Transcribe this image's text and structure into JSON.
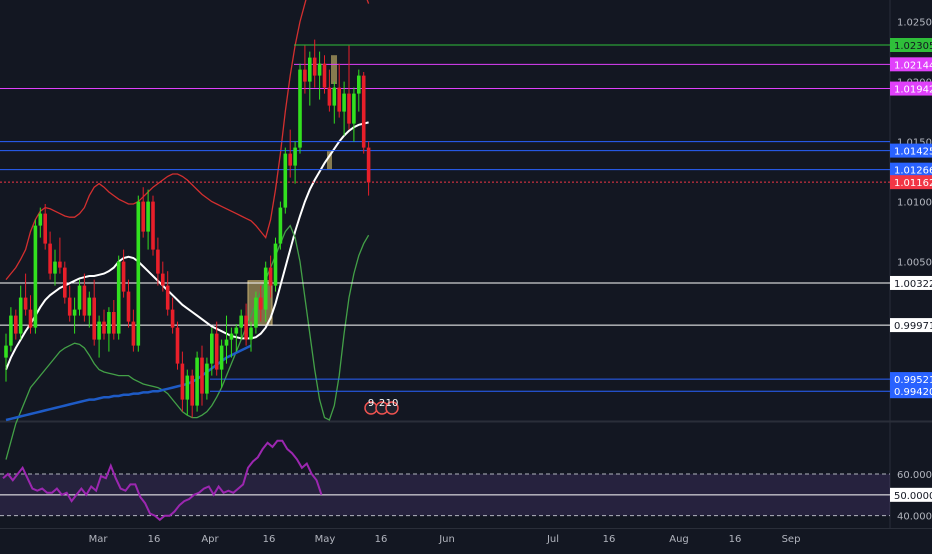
{
  "chart_data": [
    {
      "type": "candlestick",
      "title": "",
      "y_ticks": [
        "1.02500",
        "1.02000",
        "1.01500",
        "1.01000",
        "1.00500"
      ],
      "ylim": [
        0.9918,
        1.0268
      ],
      "candles": [
        [
          0.997,
          0.999,
          0.995,
          0.998
        ],
        [
          0.998,
          1.0012,
          0.9975,
          1.0005
        ],
        [
          1.0005,
          1.001,
          0.9985,
          0.999
        ],
        [
          0.999,
          1.003,
          0.9985,
          1.002
        ],
        [
          1.002,
          1.004,
          1.0005,
          1.001
        ],
        [
          1.001,
          1.0022,
          0.999,
          0.9995
        ],
        [
          0.9995,
          1.0085,
          0.999,
          1.008
        ],
        [
          1.008,
          1.0095,
          1.007,
          1.009
        ],
        [
          1.009,
          1.0098,
          1.006,
          1.0065
        ],
        [
          1.0065,
          1.0075,
          1.0035,
          1.004
        ],
        [
          1.004,
          1.006,
          1.003,
          1.005
        ],
        [
          1.005,
          1.007,
          1.004,
          1.0045
        ],
        [
          1.0045,
          1.005,
          1.0015,
          1.002
        ],
        [
          1.002,
          1.003,
          1.0,
          1.0005
        ],
        [
          1.0005,
          1.002,
          0.999,
          1.001
        ],
        [
          1.001,
          1.0035,
          1.0005,
          1.003
        ],
        [
          1.003,
          1.004,
          1.0,
          1.0005
        ],
        [
          1.0005,
          1.0025,
          0.9995,
          1.002
        ],
        [
          1.002,
          1.0035,
          0.998,
          0.9985
        ],
        [
          0.9985,
          1.0005,
          0.997,
          1.0
        ],
        [
          1.0,
          1.001,
          0.9985,
          0.999
        ],
        [
          0.999,
          1.0012,
          0.9975,
          1.0008
        ],
        [
          1.0008,
          1.0018,
          0.9985,
          0.999
        ],
        [
          0.999,
          1.0055,
          0.9985,
          1.005
        ],
        [
          1.005,
          1.006,
          1.002,
          1.0025
        ],
        [
          1.0025,
          1.0035,
          0.9995,
          1.0
        ],
        [
          1.0,
          1.001,
          0.9975,
          0.998
        ],
        [
          0.998,
          1.0105,
          0.9975,
          1.01
        ],
        [
          1.01,
          1.0112,
          1.007,
          1.0075
        ],
        [
          1.0075,
          1.011,
          1.006,
          1.01
        ],
        [
          1.01,
          1.0105,
          1.0055,
          1.006
        ],
        [
          1.006,
          1.007,
          1.003,
          1.004
        ],
        [
          1.004,
          1.005,
          1.0025,
          1.003
        ],
        [
          1.003,
          1.0042,
          1.0005,
          1.001
        ],
        [
          1.001,
          1.002,
          0.999,
          0.9995
        ],
        [
          0.9995,
          1.0,
          0.996,
          0.9965
        ],
        [
          0.9965,
          0.9975,
          0.9925,
          0.9935
        ],
        [
          0.9935,
          0.996,
          0.9922,
          0.9955
        ],
        [
          0.9955,
          0.996,
          0.992,
          0.993
        ],
        [
          0.993,
          0.9975,
          0.9925,
          0.997
        ],
        [
          0.997,
          0.998,
          0.993,
          0.994
        ],
        [
          0.994,
          0.997,
          0.9935,
          0.9965
        ],
        [
          0.9965,
          0.9995,
          0.9955,
          0.999
        ],
        [
          0.999,
          1.0,
          0.9955,
          0.996
        ],
        [
          0.996,
          0.9985,
          0.9945,
          0.998
        ],
        [
          0.998,
          1.0005,
          0.9965,
          0.9985
        ],
        [
          0.9985,
          0.9995,
          0.997,
          0.999
        ],
        [
          0.999,
          0.9998,
          0.9975,
          0.9995
        ],
        [
          0.9995,
          1.001,
          0.9985,
          1.0005
        ],
        [
          1.0005,
          1.0015,
          0.998,
          0.9985
        ],
        [
          0.9985,
          1.0,
          0.9975,
          0.9995
        ],
        [
          0.9995,
          1.0025,
          0.999,
          1.002
        ],
        [
          1.002,
          1.003,
          1.0,
          1.001
        ],
        [
          1.001,
          1.005,
          1.0,
          1.0045
        ],
        [
          1.0045,
          1.0055,
          1.002,
          1.003
        ],
        [
          1.003,
          1.007,
          1.0025,
          1.0065
        ],
        [
          1.0065,
          1.01,
          1.006,
          1.0095
        ],
        [
          1.0095,
          1.0145,
          1.009,
          1.014
        ],
        [
          1.014,
          1.016,
          1.012,
          1.013
        ],
        [
          1.013,
          1.015,
          1.0115,
          1.0145
        ],
        [
          1.0145,
          1.0215,
          1.014,
          1.021
        ],
        [
          1.021,
          1.023,
          1.019,
          1.02
        ],
        [
          1.02,
          1.0225,
          1.018,
          1.022
        ],
        [
          1.022,
          1.0235,
          1.0195,
          1.0205
        ],
        [
          1.0205,
          1.0225,
          1.0185,
          1.0215
        ],
        [
          1.0215,
          1.0222,
          1.019,
          1.0195
        ],
        [
          1.0195,
          1.021,
          1.0175,
          1.018
        ],
        [
          1.018,
          1.02,
          1.0165,
          1.0195
        ],
        [
          1.0195,
          1.0215,
          1.017,
          1.0175
        ],
        [
          1.0175,
          1.02,
          1.0155,
          1.019
        ],
        [
          1.019,
          1.023,
          1.016,
          1.0165
        ],
        [
          1.0165,
          1.0195,
          1.015,
          1.019
        ],
        [
          1.019,
          1.021,
          1.0175,
          1.0205
        ],
        [
          1.0205,
          1.0208,
          1.014,
          1.0145
        ],
        [
          1.0145,
          1.015,
          1.0105,
          1.0116
        ]
      ],
      "moving_averages": [
        {
          "color": "#ffffff",
          "values": [
            0.996,
            0.997,
            0.9978,
            0.9985,
            0.9992,
            0.9998,
            1.0005,
            1.0012,
            1.0018,
            1.0022,
            1.0025,
            1.0028,
            1.003,
            1.0032,
            1.0034,
            1.0036,
            1.0037,
            1.0038,
            1.0038,
            1.0039,
            1.004,
            1.0042,
            1.0045,
            1.005,
            1.0053,
            1.0054,
            1.0053,
            1.005,
            1.0046,
            1.0042,
            1.0038,
            1.0034,
            1.003,
            1.0026,
            1.0022,
            1.0018,
            1.0014,
            1.0011,
            1.0008,
            1.0005,
            1.0002,
            0.9999,
            0.9996,
            0.9994,
            0.9992,
            0.999,
            0.9988,
            0.9987,
            0.9986,
            0.9986,
            0.9986,
            0.9987,
            0.999,
            0.9995,
            1.0003,
            1.0015,
            1.003,
            1.0045,
            1.006,
            1.0075,
            1.0088,
            1.01,
            1.011,
            1.0118,
            1.0125,
            1.0132,
            1.0138,
            1.0144,
            1.015,
            1.0155,
            1.0159,
            1.0162,
            1.0164,
            1.0165,
            1.0166
          ]
        },
        {
          "color": "#d32f2f",
          "values": [
            1.0035,
            1.004,
            1.0045,
            1.0052,
            1.006,
            1.0075,
            1.0085,
            1.0092,
            1.0095,
            1.0094,
            1.0092,
            1.009,
            1.0088,
            1.0087,
            1.0087,
            1.009,
            1.0095,
            1.0105,
            1.0112,
            1.0115,
            1.0112,
            1.0108,
            1.0105,
            1.0102,
            1.01,
            1.0098,
            1.0098,
            1.01,
            1.0104,
            1.0108,
            1.0112,
            1.0115,
            1.0118,
            1.0121,
            1.0123,
            1.0123,
            1.0121,
            1.0118,
            1.0114,
            1.011,
            1.0106,
            1.0103,
            1.01,
            1.0098,
            1.0096,
            1.0094,
            1.0092,
            1.009,
            1.0088,
            1.0086,
            1.0084,
            1.008,
            1.0075,
            1.007,
            1.0085,
            1.011,
            1.014,
            1.0175,
            1.0205,
            1.023,
            1.025,
            1.0265,
            1.028,
            1.029,
            1.0298,
            1.0303,
            1.0306,
            1.0307,
            1.0306,
            1.0304,
            1.03,
            1.0294,
            1.0286,
            1.0276,
            1.0265
          ]
        },
        {
          "color": "#43a047",
          "values": [
            0.9885,
            0.99,
            0.9915,
            0.9925,
            0.9935,
            0.9945,
            0.995,
            0.9955,
            0.996,
            0.9965,
            0.997,
            0.9975,
            0.9978,
            0.998,
            0.9982,
            0.9981,
            0.9978,
            0.9972,
            0.9965,
            0.996,
            0.9958,
            0.9957,
            0.9956,
            0.9955,
            0.9955,
            0.9955,
            0.9952,
            0.995,
            0.9948,
            0.9947,
            0.9946,
            0.9945,
            0.9943,
            0.994,
            0.9935,
            0.993,
            0.9925,
            0.9922,
            0.992,
            0.992,
            0.9922,
            0.9925,
            0.993,
            0.9937,
            0.9945,
            0.9955,
            0.9965,
            0.9975,
            0.9985,
            0.9995,
            1.0005,
            1.0015,
            1.0025,
            1.0035,
            1.0045,
            1.0055,
            1.0065,
            1.0075,
            1.008,
            1.007,
            1.005,
            1.002,
            0.999,
            0.996,
            0.9935,
            0.992,
            0.9918,
            0.993,
            0.9955,
            0.999,
            1.002,
            1.004,
            1.0055,
            1.0065,
            1.0072
          ]
        },
        {
          "color": "#1e5bc6",
          "values": [
            0.9918,
            0.9919,
            0.992,
            0.9921,
            0.9922,
            0.9923,
            0.9924,
            0.9925,
            0.9926,
            0.9927,
            0.9928,
            0.9929,
            0.993,
            0.9931,
            0.9932,
            0.9933,
            0.9934,
            0.9935,
            0.9935,
            0.9936,
            0.9937,
            0.9937,
            0.9938,
            0.9938,
            0.9939,
            0.9939,
            0.994,
            0.994,
            0.9941,
            0.9941,
            0.9942,
            0.9942,
            0.9943,
            0.9944,
            0.9945,
            0.9946,
            0.9947,
            0.9948,
            0.995,
            0.9952,
            0.9955,
            0.9958,
            0.9961,
            0.9964,
            0.9967,
            0.997,
            0.9972,
            0.9974,
            0.9976,
            0.9978,
            0.998
          ]
        }
      ],
      "horizontal_levels": [
        {
          "value": 1.02305,
          "label": "1.02305",
          "color": "#2fbf3a"
        },
        {
          "value": 1.02144,
          "label": "1.02144",
          "color": "#e040fb"
        },
        {
          "value": 1.01942,
          "label": "1.01942",
          "color": "#e040fb"
        },
        {
          "value": 1.01425,
          "label": "1.01425",
          "color": "#2962ff"
        },
        {
          "value": 1.01266,
          "label": "1.01266",
          "color": "#2962ff"
        },
        {
          "value": 1.01162,
          "label": "1.01162",
          "color": "#f23645"
        },
        {
          "value": 1.00322,
          "label": "1.00322",
          "color": "#ffffff"
        },
        {
          "value": 0.99971,
          "label": "0.99971",
          "color": "#ffffff"
        },
        {
          "value": 0.99521,
          "label": "0.99521",
          "color": "#2962ff"
        },
        {
          "value": 0.9942,
          "label": "0.99420",
          "color": "#2962ff"
        }
      ],
      "partial_label": "1.02000",
      "extra_level": {
        "value": 1.015,
        "color": "#2962ff"
      },
      "marker_labels": [
        "9",
        "2",
        "10"
      ],
      "x_ticks": [
        "Mar",
        "16",
        "Apr",
        "16",
        "May",
        "16",
        "Jun",
        "Jul",
        "16",
        "Aug",
        "16",
        "Sep"
      ],
      "colors": {
        "up": "#32e01f",
        "down": "#e81f2a",
        "background": "#131722",
        "axis_text": "#b2b5be"
      }
    },
    {
      "type": "line",
      "title": "",
      "y_ticks": [
        "60.0000",
        "50.0000",
        "40.0000"
      ],
      "ylim": [
        36,
        84
      ],
      "reference_lines": [
        60,
        40
      ],
      "band": [
        40,
        60
      ],
      "series": [
        {
          "color": "#9c27b0",
          "values": [
            58,
            60,
            57,
            60,
            63,
            58,
            53,
            52,
            53,
            51,
            51,
            53,
            50,
            51,
            47,
            50,
            53,
            50,
            54,
            52,
            59,
            58,
            64,
            58,
            53,
            52,
            55,
            55,
            49,
            46,
            41,
            40,
            38,
            40,
            40,
            42,
            45,
            47,
            48,
            50,
            51,
            53,
            54,
            50,
            54,
            51,
            52,
            51,
            53,
            55,
            63,
            66,
            68,
            72,
            75,
            73,
            76,
            76,
            72,
            70,
            67,
            63,
            65,
            60,
            57,
            50
          ]
        }
      ],
      "current_value": "50.0000"
    }
  ]
}
